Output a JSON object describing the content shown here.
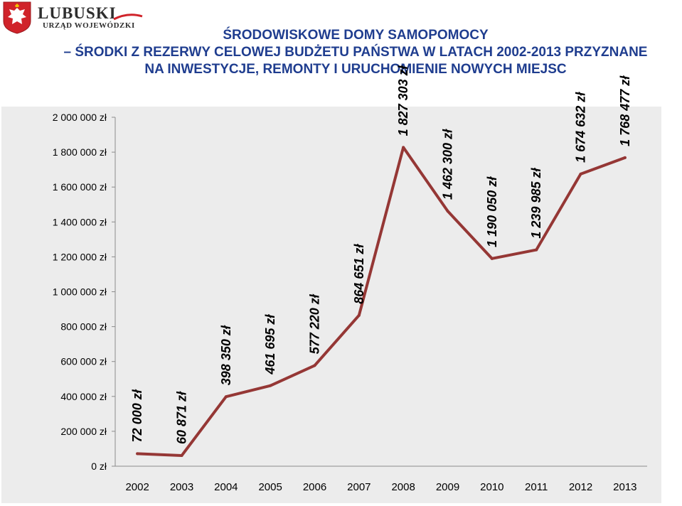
{
  "header": {
    "brand": "LUBUSKI",
    "brand_sub": "URZĄD WOJEWÓDZKI",
    "title_lines": [
      "ŚRODOWISKOWE DOMY SAMOPOMOCY",
      "– ŚRODKI Z REZERWY CELOWEJ BUDŻETU PAŃSTWA W LATACH 2002-2013 PRZYZNANE",
      "NA INWESTYCJE, REMONTY I URUCHOMIENIE NOWYCH MIEJSC"
    ]
  },
  "colors": {
    "line": "#953735",
    "title": "#1f3d8f",
    "plot_bg": "#ececec",
    "emblem_red": "#d0232a"
  },
  "chart_data": {
    "type": "line",
    "categories": [
      "2002",
      "2003",
      "2004",
      "2005",
      "2006",
      "2007",
      "2008",
      "2009",
      "2010",
      "2011",
      "2012",
      "2013"
    ],
    "values": [
      72000,
      60871,
      398350,
      461695,
      577220,
      864651,
      1827303,
      1462300,
      1190050,
      1239985,
      1674632,
      1768477
    ],
    "data_labels": [
      "72 000 zł",
      "60 871 zł",
      "398 350 zł",
      "461 695 zł",
      "577 220 zł",
      "864 651 zł",
      "1 827 303 zł",
      "1 462 300 zł",
      "1 190 050 zł",
      "1 239 985 zł",
      "1 674 632 zł",
      "1 768 477 zł"
    ],
    "y_ticks": [
      0,
      200000,
      400000,
      600000,
      800000,
      1000000,
      1200000,
      1400000,
      1600000,
      1800000,
      2000000
    ],
    "y_tick_labels": [
      "0 zł",
      "200 000 zł",
      "400 000 zł",
      "600 000 zł",
      "800 000 zł",
      "1 000 000 zł",
      "1 200 000 zł",
      "1 400 000 zł",
      "1 600 000 zł",
      "1 800 000 zł",
      "2 000 000 zł"
    ],
    "ylim": [
      0,
      2000000
    ],
    "grid": false,
    "legend": "none",
    "title": "",
    "xlabel": "",
    "ylabel": ""
  }
}
